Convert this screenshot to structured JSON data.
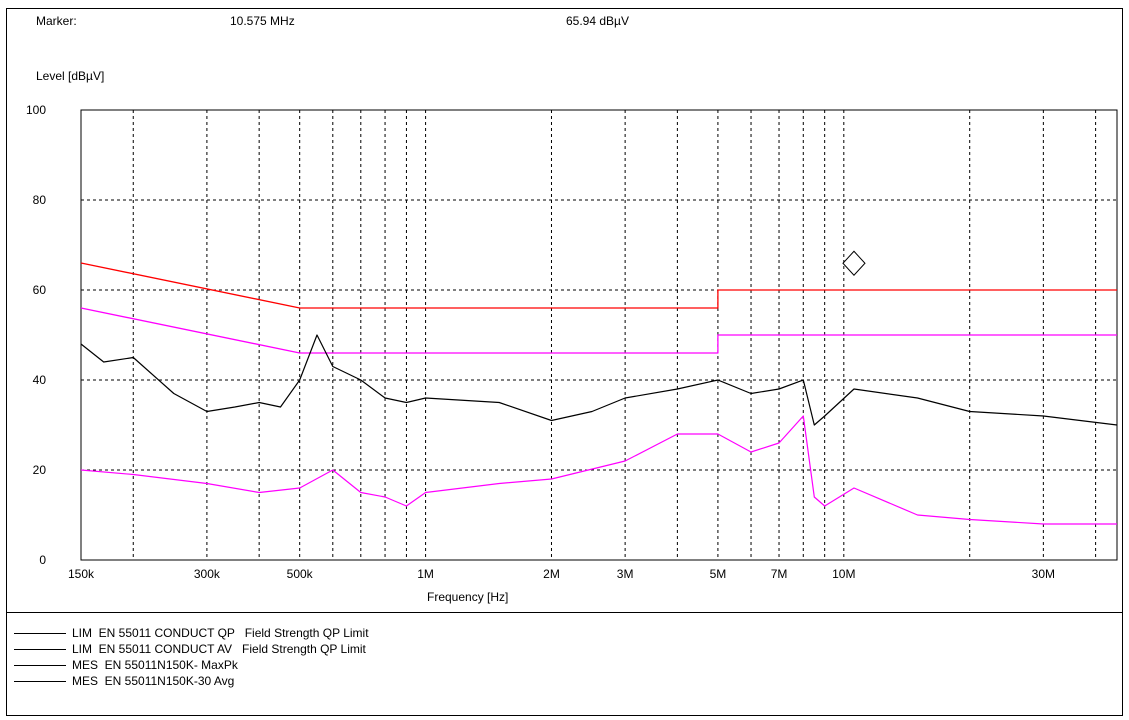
{
  "header": {
    "marker_label": "Marker:",
    "marker_freq": "10.575 MHz",
    "marker_level": "65.94 dBµV"
  },
  "chart_data": {
    "type": "line",
    "ylabel": "Level [dBµV]",
    "xlabel": "Frequency [Hz]",
    "x_scale": "log",
    "xlim": [
      0.15,
      45
    ],
    "ylim": [
      0,
      100
    ],
    "y_ticks": [
      "100",
      "80",
      "60",
      "40",
      "20",
      "0"
    ],
    "y_tick_values": [
      100,
      80,
      60,
      40,
      20,
      0
    ],
    "x_ticks": [
      {
        "label": "150k",
        "mhz": 0.15
      },
      {
        "label": "300k",
        "mhz": 0.3
      },
      {
        "label": "500k",
        "mhz": 0.5
      },
      {
        "label": "1M",
        "mhz": 1
      },
      {
        "label": "2M",
        "mhz": 2
      },
      {
        "label": "3M",
        "mhz": 3
      },
      {
        "label": "5M",
        "mhz": 5
      },
      {
        "label": "7M",
        "mhz": 7
      },
      {
        "label": "10M",
        "mhz": 10
      },
      {
        "label": "30M",
        "mhz": 30
      }
    ],
    "grid": true,
    "marker": {
      "mhz": 10.575,
      "level": 65.94
    },
    "series": [
      {
        "name": "LIM  EN 55011 CONDUCT QP   Field Strength QP Limit",
        "color": "#ff0000",
        "points": [
          [
            0.15,
            66
          ],
          [
            0.5,
            56
          ],
          [
            5,
            56
          ],
          [
            5,
            60
          ],
          [
            45,
            60
          ]
        ]
      },
      {
        "name": "LIM  EN 55011 CONDUCT AV   Field Strength QP Limit",
        "color": "#ff00ff",
        "points": [
          [
            0.15,
            56
          ],
          [
            0.5,
            46
          ],
          [
            5,
            46
          ],
          [
            5,
            50
          ],
          [
            45,
            50
          ]
        ]
      },
      {
        "name": "MES  EN 55011N150K- MaxPk",
        "color": "#000000",
        "points": [
          [
            0.15,
            48
          ],
          [
            0.17,
            44
          ],
          [
            0.2,
            45
          ],
          [
            0.25,
            37
          ],
          [
            0.3,
            33
          ],
          [
            0.35,
            34
          ],
          [
            0.4,
            35
          ],
          [
            0.45,
            34
          ],
          [
            0.5,
            40
          ],
          [
            0.55,
            50
          ],
          [
            0.6,
            43
          ],
          [
            0.7,
            40
          ],
          [
            0.8,
            36
          ],
          [
            0.9,
            35
          ],
          [
            1,
            36
          ],
          [
            1.5,
            35
          ],
          [
            2,
            31
          ],
          [
            2.5,
            33
          ],
          [
            3,
            36
          ],
          [
            4,
            38
          ],
          [
            5,
            40
          ],
          [
            6,
            37
          ],
          [
            7,
            38
          ],
          [
            8,
            40
          ],
          [
            8.5,
            30
          ],
          [
            9,
            32
          ],
          [
            10.575,
            38
          ],
          [
            15,
            36
          ],
          [
            20,
            33
          ],
          [
            30,
            32
          ],
          [
            45,
            30
          ]
        ]
      },
      {
        "name": "MES  EN 55011N150K-30 Avg",
        "color": "#ff00ff",
        "points": [
          [
            0.15,
            20
          ],
          [
            0.2,
            19
          ],
          [
            0.3,
            17
          ],
          [
            0.4,
            15
          ],
          [
            0.5,
            16
          ],
          [
            0.6,
            20
          ],
          [
            0.7,
            15
          ],
          [
            0.8,
            14
          ],
          [
            0.9,
            12
          ],
          [
            1,
            15
          ],
          [
            1.5,
            17
          ],
          [
            2,
            18
          ],
          [
            3,
            22
          ],
          [
            4,
            28
          ],
          [
            5,
            28
          ],
          [
            6,
            24
          ],
          [
            7,
            26
          ],
          [
            8,
            32
          ],
          [
            8.5,
            14
          ],
          [
            9,
            12
          ],
          [
            10.575,
            16
          ],
          [
            15,
            10
          ],
          [
            20,
            9
          ],
          [
            30,
            8
          ],
          [
            45,
            8
          ]
        ]
      }
    ]
  },
  "legend": [
    {
      "text": "LIM  EN 55011 CONDUCT QP   Field Strength QP Limit"
    },
    {
      "text": "LIM  EN 55011 CONDUCT AV   Field Strength QP Limit"
    },
    {
      "text": "MES  EN 55011N150K- MaxPk"
    },
    {
      "text": "MES  EN 55011N150K-30 Avg"
    }
  ]
}
